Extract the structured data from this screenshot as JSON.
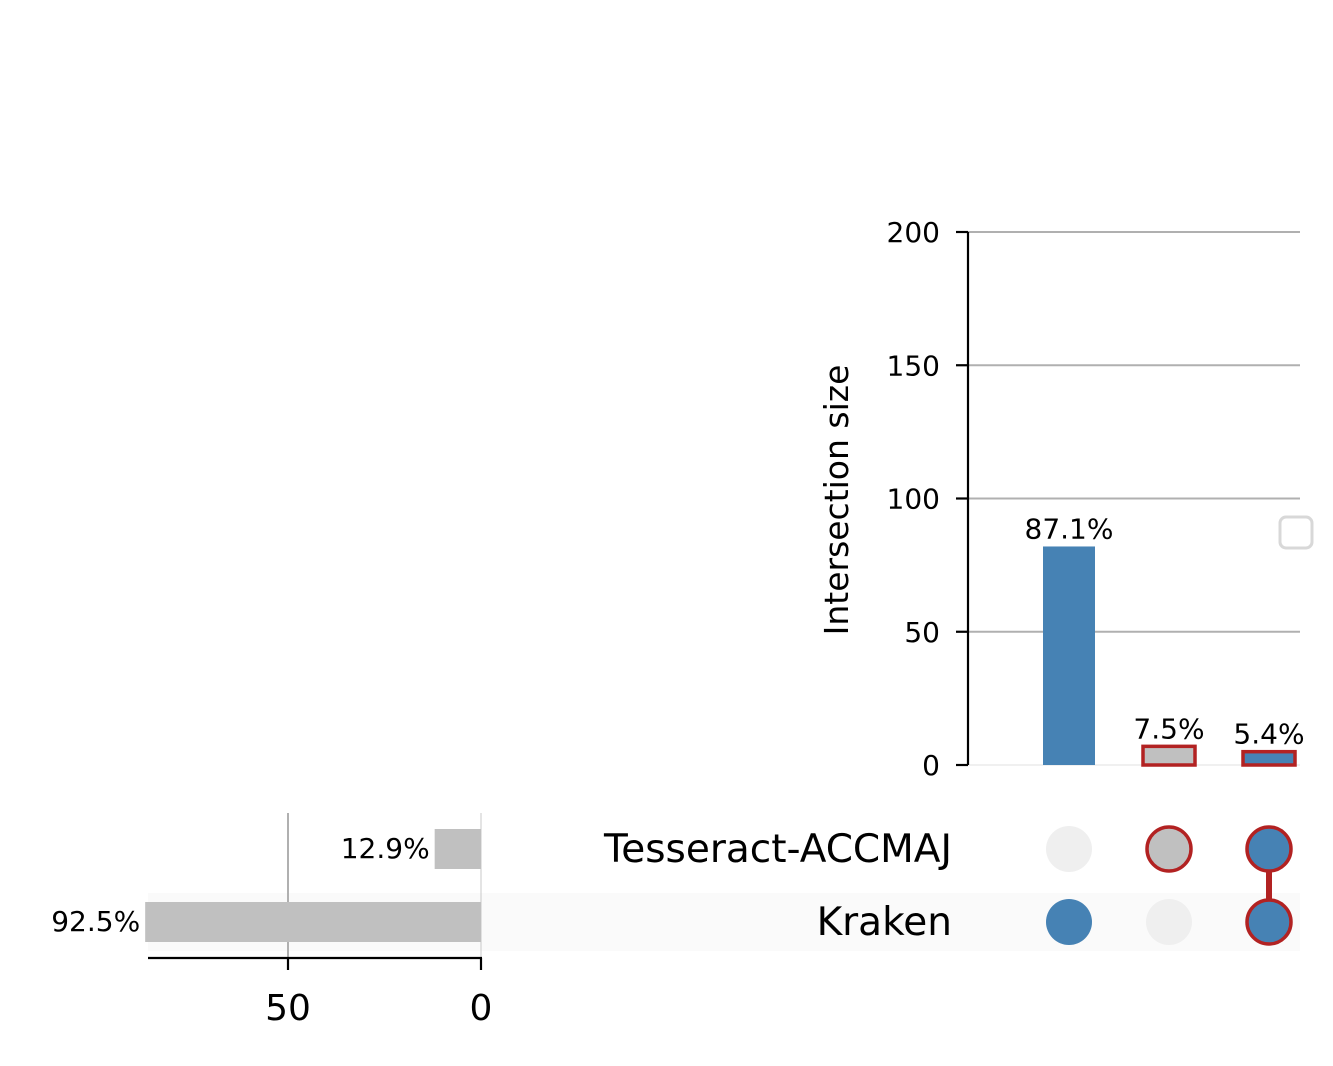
{
  "chart_data": {
    "type": "upset",
    "colors": {
      "accent": "#4682b4",
      "highlight_edge": "#b22222",
      "muted": "#c0c0c0",
      "inactive_dot": "#efefef",
      "grid": "#b0b0b0"
    },
    "intersections": {
      "ylabel": "Intersection size",
      "ylim": [
        0,
        200
      ],
      "yticks": [
        0,
        50,
        100,
        150,
        200
      ],
      "yticklabels": [
        "0",
        "50",
        "100",
        "150",
        "200"
      ],
      "grid": true,
      "bars": [
        {
          "value": 82,
          "label": "87.1%",
          "members": [
            "Kraken"
          ],
          "fill": "#4682b4",
          "edge": "",
          "highlight": false
        },
        {
          "value": 7,
          "label": "7.5%",
          "members": [
            "Tesseract-ACCMAJ"
          ],
          "fill": "#c0c0c0",
          "edge": "#b22222",
          "highlight": true
        },
        {
          "value": 5,
          "label": "5.4%",
          "members": [
            "Tesseract-ACCMAJ",
            "Kraken"
          ],
          "fill": "#4682b4",
          "edge": "#b22222",
          "highlight": true
        }
      ]
    },
    "sets": {
      "names": [
        "Tesseract-ACCMAJ",
        "Kraken"
      ],
      "values": [
        12,
        87
      ],
      "labels": [
        "12.9%",
        "92.5%"
      ],
      "xlim": [
        0,
        86
      ],
      "xticks": [
        50,
        0
      ],
      "xticklabels": [
        "50",
        "0"
      ]
    }
  }
}
